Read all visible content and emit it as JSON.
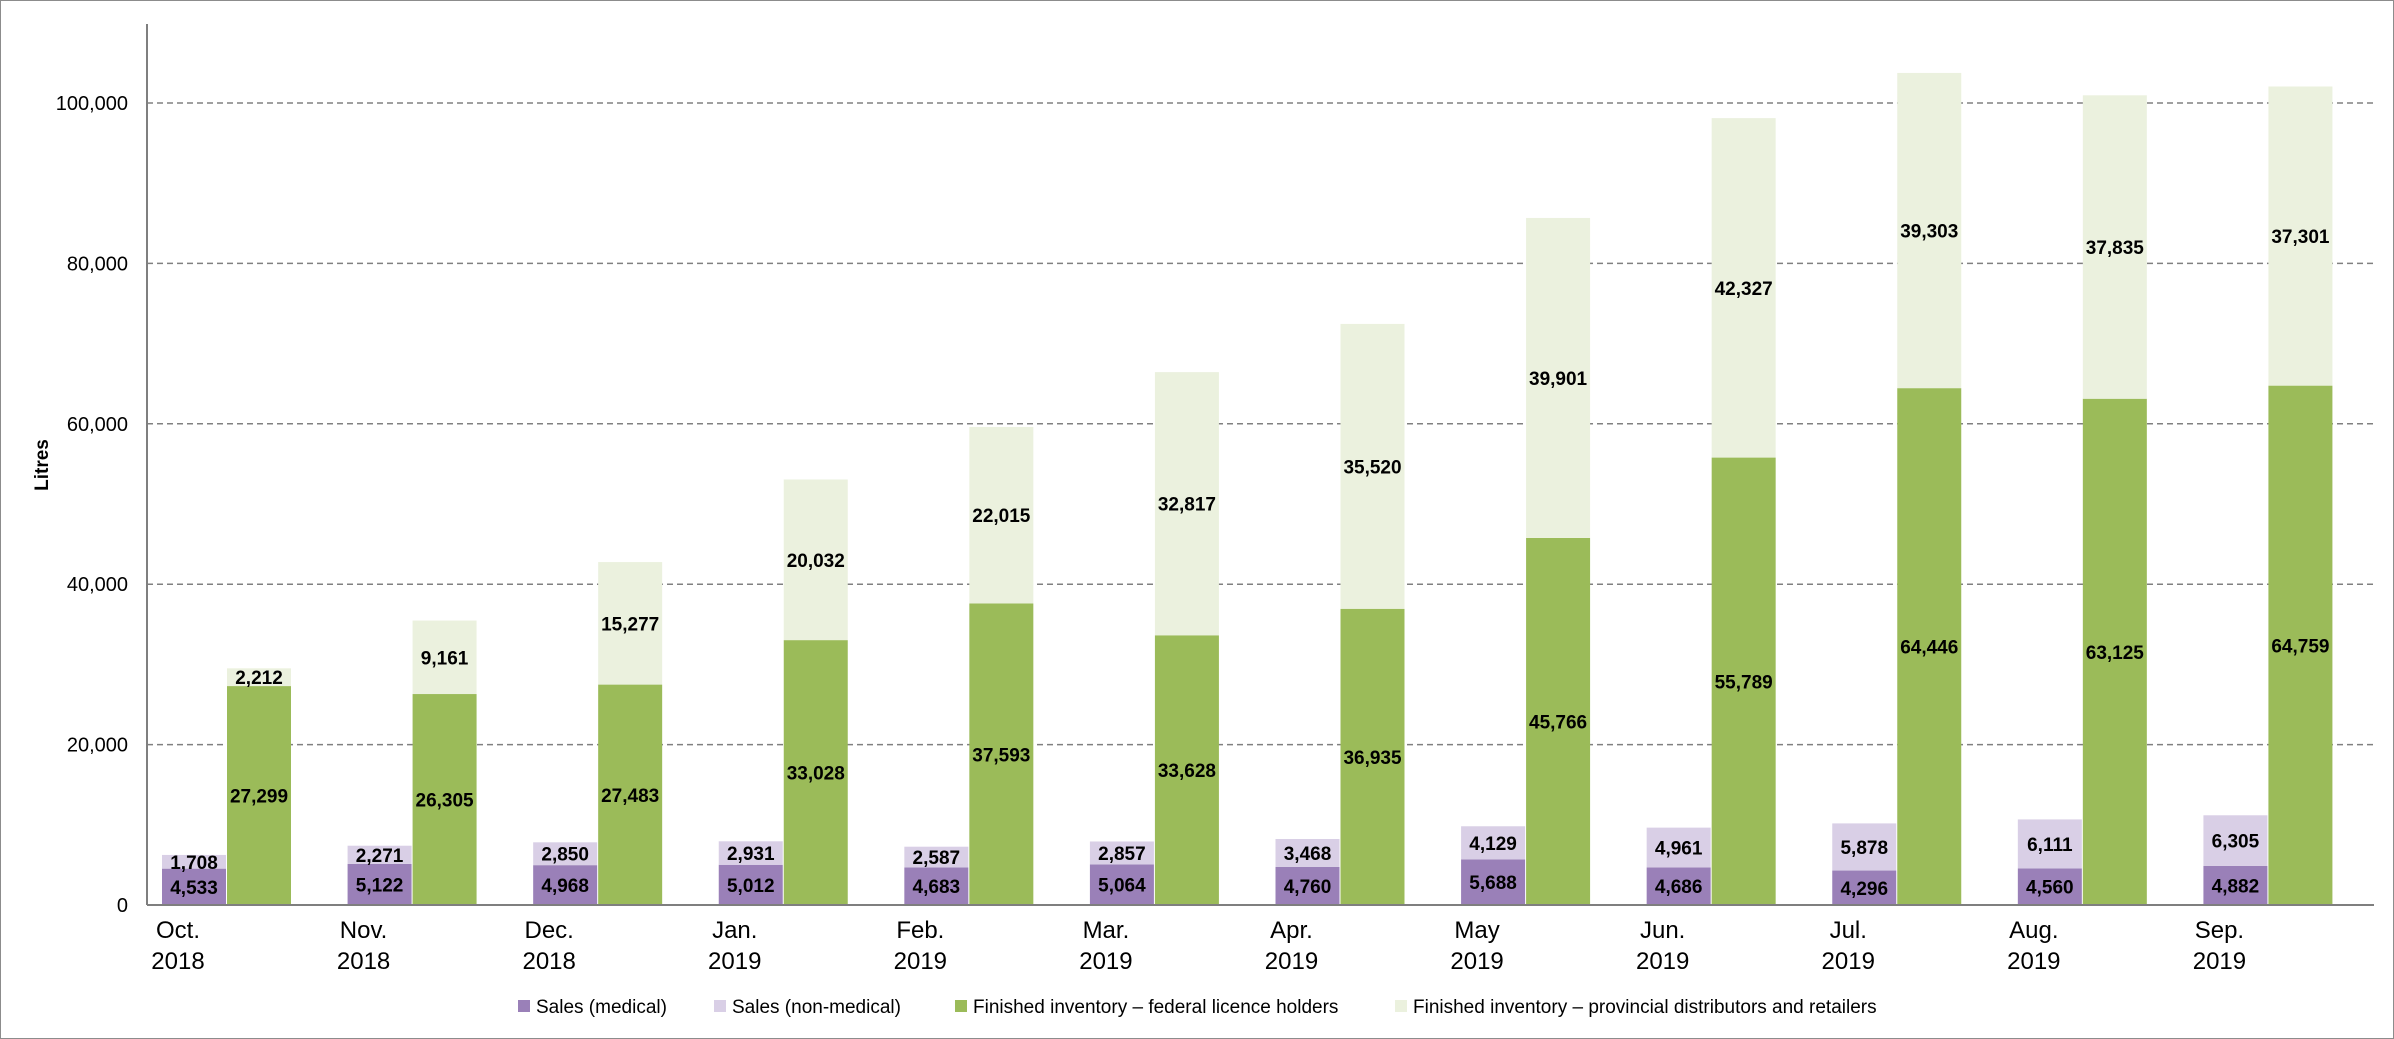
{
  "chart_data": {
    "type": "bar",
    "stacked_groups": true,
    "title": "",
    "xlabel": "",
    "ylabel": "Litres",
    "ylim": [
      0,
      110000
    ],
    "yticks": [
      0,
      20000,
      40000,
      60000,
      80000,
      100000
    ],
    "ytick_labels": [
      "0",
      "20,000",
      "40,000",
      "60,000",
      "80,000",
      "100,000"
    ],
    "grid": true,
    "legend_position": "bottom",
    "categories": [
      [
        "Oct.",
        "2018"
      ],
      [
        "Nov.",
        "2018"
      ],
      [
        "Dec.",
        "2018"
      ],
      [
        "Jan.",
        "2019"
      ],
      [
        "Feb.",
        "2019"
      ],
      [
        "Mar.",
        "2019"
      ],
      [
        "Apr.",
        "2019"
      ],
      [
        "May",
        "2019"
      ],
      [
        "Jun.",
        "2019"
      ],
      [
        "Jul.",
        "2019"
      ],
      [
        "Aug.",
        "2019"
      ],
      [
        "Sep.",
        "2019"
      ]
    ],
    "series": [
      {
        "name": "Sales (medical)",
        "stack": "sales",
        "color": "#9a80b8",
        "values": [
          4533,
          5122,
          4968,
          5012,
          4683,
          5064,
          4760,
          5688,
          4686,
          4296,
          4560,
          4882
        ],
        "labels": [
          "4,533",
          "5,122",
          "4,968",
          "5,012",
          "4,683",
          "5,064",
          "4,760",
          "5,688",
          "4,686",
          "4,296",
          "4,560",
          "4,882"
        ]
      },
      {
        "name": "Sales (non-medical)",
        "stack": "sales",
        "color": "#d9cfe6",
        "values": [
          1708,
          2271,
          2850,
          2931,
          2587,
          2857,
          3468,
          4129,
          4961,
          5878,
          6111,
          6305
        ],
        "labels": [
          "1,708",
          "2,271",
          "2,850",
          "2,931",
          "2,587",
          "2,857",
          "3,468",
          "4,129",
          "4,961",
          "5,878",
          "6,111",
          "6,305"
        ]
      },
      {
        "name": "Finished inventory – federal  licence holders",
        "stack": "inventory",
        "color": "#9bbb59",
        "values": [
          27299,
          26305,
          27483,
          33028,
          37593,
          33628,
          36935,
          45766,
          55789,
          64446,
          63125,
          64759
        ],
        "labels": [
          "27,299",
          "26,305",
          "27,483",
          "33,028",
          "37,593",
          "33,628",
          "36,935",
          "45,766",
          "55,789",
          "64,446",
          "63,125",
          "64,759"
        ]
      },
      {
        "name": "Finished inventory – provincial distributors and retailers",
        "stack": "inventory",
        "color": "#ebf1de",
        "values": [
          2212,
          9161,
          15277,
          20032,
          22015,
          32817,
          35520,
          39901,
          42327,
          39303,
          37835,
          37301
        ],
        "labels": [
          "2,212",
          "9,161",
          "15,277",
          "20,032",
          "22,015",
          "32,817",
          "35,520",
          "39,901",
          "42,327",
          "39,303",
          "37,835",
          "37,301"
        ]
      }
    ]
  }
}
